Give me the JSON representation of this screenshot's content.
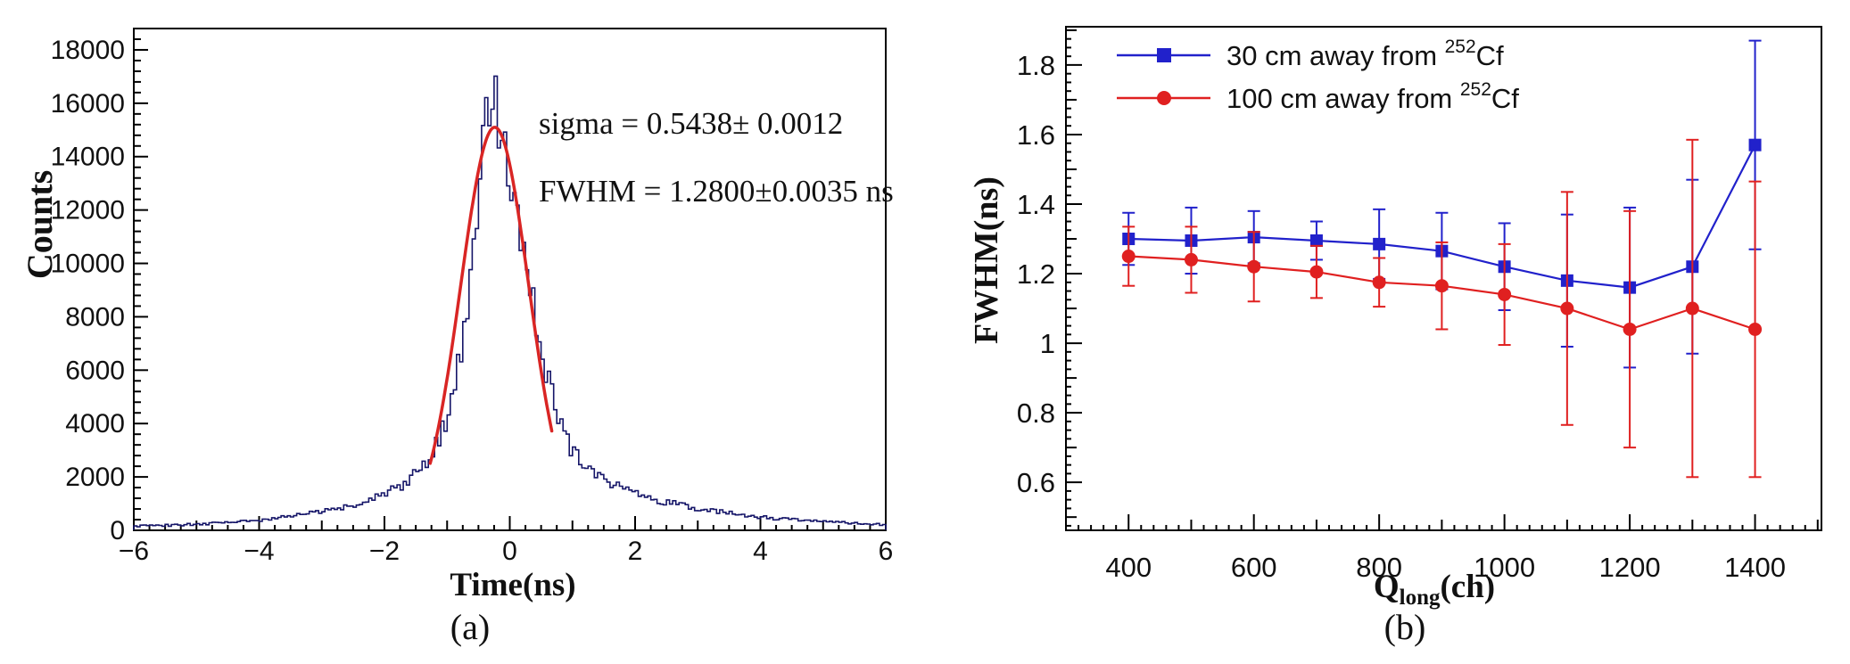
{
  "figure": {
    "background": "#ffffff",
    "caption_a": "(a)",
    "caption_b": "(b)"
  },
  "chart_data": [
    {
      "panel": "a",
      "type": "histogram",
      "caption": "(a)",
      "xlabel": "Time(ns)",
      "ylabel": "Counts",
      "xlim": [
        -6,
        6
      ],
      "ylim": [
        0,
        18800
      ],
      "grid": false,
      "bin_width_ns": 0.05,
      "histogram_color": "#151568",
      "x_tick_values": [
        -6,
        -4,
        -2,
        0,
        2,
        4,
        6
      ],
      "x_tick_labels": [
        "−6",
        "−4",
        "−2",
        "0",
        "2",
        "4",
        "6"
      ],
      "y_tick_values": [
        0,
        2000,
        4000,
        6000,
        8000,
        10000,
        12000,
        14000,
        16000,
        18000
      ],
      "y_tick_labels": [
        "0",
        "2000",
        "4000",
        "6000",
        "8000",
        "10000",
        "12000",
        "14000",
        "16000",
        "18000"
      ],
      "annotation_lines": [
        "sigma = 0.5438± 0.0012",
        "FWHM = 1.2800±0.0035 ns"
      ],
      "fit_curve": {
        "shape": "gaussian",
        "amplitude": 15100,
        "mean": -0.24,
        "sigma": 0.5438,
        "draw_range": [
          -1.27,
          0.68
        ],
        "color": "#d92524"
      },
      "envelope_points": [
        [
          -6.0,
          150
        ],
        [
          -5.5,
          185
        ],
        [
          -5.0,
          225
        ],
        [
          -4.5,
          285
        ],
        [
          -4.0,
          385
        ],
        [
          -3.5,
          520
        ],
        [
          -3.0,
          700
        ],
        [
          -2.5,
          950
        ],
        [
          -2.0,
          1350
        ],
        [
          -1.75,
          1650
        ],
        [
          -1.5,
          2100
        ],
        [
          -1.25,
          2800
        ],
        [
          -1.0,
          4200
        ],
        [
          -0.9,
          5200
        ],
        [
          -0.8,
          6600
        ],
        [
          -0.7,
          8300
        ],
        [
          -0.6,
          10300
        ],
        [
          -0.5,
          12600
        ],
        [
          -0.4,
          15000
        ],
        [
          -0.3,
          16100
        ],
        [
          -0.25,
          16200
        ],
        [
          -0.2,
          15900
        ],
        [
          -0.1,
          15100
        ],
        [
          0.0,
          14000
        ],
        [
          0.1,
          12600
        ],
        [
          0.2,
          11300
        ],
        [
          0.3,
          9900
        ],
        [
          0.4,
          8400
        ],
        [
          0.5,
          7000
        ],
        [
          0.6,
          5800
        ],
        [
          0.7,
          4800
        ],
        [
          0.8,
          4000
        ],
        [
          0.9,
          3400
        ],
        [
          1.0,
          2950
        ],
        [
          1.25,
          2300
        ],
        [
          1.5,
          1900
        ],
        [
          1.75,
          1600
        ],
        [
          2.0,
          1400
        ],
        [
          2.5,
          1050
        ],
        [
          3.0,
          820
        ],
        [
          3.5,
          640
        ],
        [
          4.0,
          500
        ],
        [
          4.5,
          400
        ],
        [
          5.0,
          320
        ],
        [
          5.5,
          260
        ],
        [
          6.0,
          210
        ]
      ]
    },
    {
      "panel": "b",
      "type": "line",
      "caption": "(b)",
      "xlabel_parts": {
        "main": "Q",
        "sub": "long",
        "suffix": "(ch)"
      },
      "ylabel": "FWHM(ns)",
      "xlim": [
        300,
        1506
      ],
      "ylim": [
        0.462,
        1.91
      ],
      "grid": false,
      "legend_position": "top-left",
      "x_tick_values": [
        400,
        600,
        800,
        1000,
        1200,
        1400
      ],
      "x_tick_labels": [
        "400",
        "600",
        "800",
        "1000",
        "1200",
        "1400"
      ],
      "y_tick_values": [
        0.6,
        0.8,
        1.0,
        1.2,
        1.4,
        1.6,
        1.8
      ],
      "y_tick_labels": [
        "0.6",
        "0.8",
        "1",
        "1.2",
        "1.4",
        "1.6",
        "1.8"
      ],
      "x": [
        400,
        500,
        600,
        700,
        800,
        900,
        1000,
        1100,
        1200,
        1300,
        1400
      ],
      "series": [
        {
          "name": "30 cm away from 252Cf",
          "label_prefix": "30 cm away from  ",
          "label_sup": "252",
          "label_base": "Cf",
          "color": "#2121cb",
          "marker": "square",
          "values": [
            1.3,
            1.295,
            1.305,
            1.295,
            1.285,
            1.265,
            1.22,
            1.18,
            1.16,
            1.22,
            1.57
          ],
          "errors": [
            0.075,
            0.095,
            0.075,
            0.055,
            0.1,
            0.11,
            0.125,
            0.19,
            0.23,
            0.25,
            0.3
          ]
        },
        {
          "name": "100 cm away from 252Cf",
          "label_prefix": "100 cm away from ",
          "label_sup": "252",
          "label_base": "Cf",
          "color": "#e02020",
          "marker": "circle",
          "values": [
            1.25,
            1.24,
            1.22,
            1.205,
            1.175,
            1.165,
            1.14,
            1.1,
            1.04,
            1.1,
            1.04
          ],
          "errors": [
            0.085,
            0.095,
            0.1,
            0.075,
            0.07,
            0.125,
            0.145,
            0.335,
            0.34,
            0.485,
            0.425
          ]
        }
      ]
    }
  ]
}
